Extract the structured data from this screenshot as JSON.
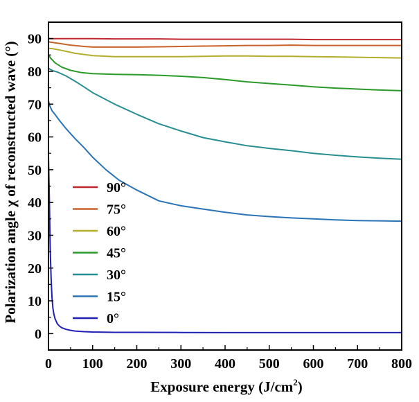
{
  "chart_data": {
    "type": "line",
    "title": "",
    "xlabel": "Exposure energy (J/cm",
    "xlabel_sup": "2",
    "xlabel_end": ")",
    "ylabel": "Polarization angle χ of reconstructed wave (°)",
    "xlim": [
      0,
      800
    ],
    "ylim": [
      -5,
      95
    ],
    "xticks": [
      0,
      100,
      200,
      300,
      400,
      500,
      600,
      700,
      800
    ],
    "yticks": [
      0,
      10,
      20,
      30,
      40,
      50,
      60,
      70,
      80,
      90
    ],
    "xtick_labels": [
      "0",
      "100",
      "200",
      "300",
      "400",
      "500",
      "600",
      "700",
      "800"
    ],
    "ytick_labels": [
      "0",
      "10",
      "20",
      "30",
      "40",
      "50",
      "60",
      "70",
      "80",
      "90"
    ],
    "grid": false,
    "legend_position": "left",
    "series": [
      {
        "name": "90°",
        "color": "#c0272d",
        "x": [
          0,
          50,
          100,
          150,
          200,
          250,
          300,
          350,
          400,
          450,
          500,
          550,
          600,
          650,
          700,
          750,
          800
        ],
        "y": [
          90,
          90,
          90,
          89.9,
          89.9,
          89.9,
          89.8,
          89.8,
          89.8,
          89.8,
          89.8,
          89.8,
          89.7,
          89.7,
          89.7,
          89.7,
          89.7
        ]
      },
      {
        "name": "75°",
        "color": "#c8622a",
        "x": [
          0,
          20,
          50,
          80,
          100,
          150,
          200,
          250,
          300,
          350,
          400,
          450,
          500,
          550,
          600,
          650,
          700,
          750,
          800
        ],
        "y": [
          89,
          88.6,
          88,
          87.6,
          87.4,
          87.4,
          87.4,
          87.5,
          87.6,
          87.7,
          87.8,
          87.9,
          87.9,
          88,
          87.9,
          87.9,
          87.9,
          87.9,
          87.9
        ]
      },
      {
        "name": "60°",
        "color": "#b3ad2c",
        "x": [
          0,
          10,
          30,
          60,
          100,
          150,
          200,
          250,
          300,
          350,
          400,
          450,
          500,
          550,
          600,
          650,
          700,
          750,
          800
        ],
        "y": [
          87,
          86.9,
          86.4,
          85.5,
          84.8,
          84.5,
          84.5,
          84.5,
          84.5,
          84.6,
          84.7,
          84.7,
          84.6,
          84.6,
          84.5,
          84.4,
          84.3,
          84.2,
          84.1
        ]
      },
      {
        "name": "45°",
        "color": "#2a9a2a",
        "x": [
          0,
          5,
          15,
          30,
          50,
          75,
          100,
          150,
          200,
          250,
          300,
          350,
          400,
          450,
          500,
          550,
          600,
          650,
          700,
          750,
          800
        ],
        "y": [
          85,
          84,
          82.6,
          81.3,
          80.3,
          79.6,
          79.3,
          79.1,
          79.0,
          78.8,
          78.5,
          78.1,
          77.5,
          76.8,
          76.3,
          75.8,
          75.3,
          74.9,
          74.6,
          74.3,
          74.1
        ]
      },
      {
        "name": "30°",
        "color": "#278e91",
        "x": [
          0,
          5,
          10,
          20,
          40,
          60,
          80,
          100,
          150,
          200,
          250,
          300,
          350,
          400,
          450,
          500,
          550,
          600,
          650,
          700,
          750,
          800
        ],
        "y": [
          81,
          80.5,
          80.2,
          79.8,
          78.6,
          77.0,
          75.3,
          73.5,
          70.0,
          66.9,
          64.0,
          61.8,
          59.8,
          58.5,
          57.3,
          56.5,
          55.8,
          55.0,
          54.4,
          53.9,
          53.5,
          53.2
        ]
      },
      {
        "name": "15°",
        "color": "#2a73b6",
        "x": [
          0,
          3,
          8,
          15,
          25,
          40,
          60,
          80,
          100,
          130,
          160,
          200,
          250,
          300,
          350,
          400,
          450,
          500,
          550,
          600,
          650,
          700,
          750,
          800
        ],
        "y": [
          71,
          69.5,
          68,
          66.8,
          65.0,
          62.5,
          59.5,
          56.8,
          53.8,
          50.0,
          46.8,
          43.8,
          40.5,
          39.0,
          38.0,
          37.0,
          36.2,
          35.7,
          35.3,
          35.0,
          34.7,
          34.5,
          34.4,
          34.3
        ]
      },
      {
        "name": "0°",
        "color": "#1f1fb4",
        "x": [
          0,
          1,
          2,
          3,
          4,
          5,
          6,
          7,
          8,
          10,
          12,
          15,
          20,
          25,
          30,
          40,
          50,
          60,
          80,
          100,
          150,
          200,
          300,
          400,
          500,
          600,
          700,
          800
        ],
        "y": [
          54,
          48,
          41,
          33,
          26,
          21,
          17,
          13.5,
          11,
          7.8,
          6,
          4.5,
          3,
          2.3,
          1.8,
          1.3,
          1.0,
          0.8,
          0.6,
          0.5,
          0.4,
          0.4,
          0.35,
          0.3,
          0.3,
          0.3,
          0.3,
          0.3
        ]
      }
    ]
  }
}
